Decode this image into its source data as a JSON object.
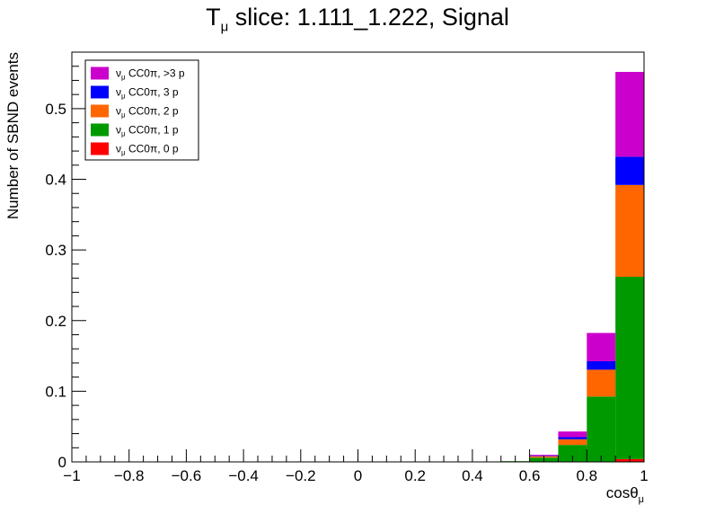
{
  "title": {
    "main": "T",
    "sub": "μ",
    "rest": " slice: 1.111_1.222, Signal"
  },
  "chart_data": {
    "type": "bar",
    "stacked": true,
    "xlabel": "cosθ",
    "xlabel_sub": "μ",
    "ylabel": "Number of SBND events",
    "xlim": [
      -1,
      1
    ],
    "ylim": [
      0,
      0.58
    ],
    "bin_edges": [
      -1.0,
      -0.9,
      -0.8,
      -0.7,
      -0.6,
      -0.5,
      -0.4,
      -0.3,
      -0.2,
      -0.1,
      0.0,
      0.1,
      0.2,
      0.3,
      0.4,
      0.5,
      0.6,
      0.7,
      0.8,
      0.9,
      1.0
    ],
    "xticks": [
      -1,
      -0.8,
      -0.6,
      -0.4,
      -0.2,
      0,
      0.2,
      0.4,
      0.6,
      0.8,
      1
    ],
    "xtick_labels": [
      "−1",
      "−0.8",
      "−0.6",
      "−0.4",
      "−0.2",
      "0",
      "0.2",
      "0.4",
      "0.6",
      "0.8",
      "1"
    ],
    "yticks": [
      0,
      0.1,
      0.2,
      0.3,
      0.4,
      0.5
    ],
    "ytick_labels": [
      "0",
      "0.1",
      "0.2",
      "0.3",
      "0.4",
      "0.5"
    ],
    "legend_placement": "top-left",
    "series": [
      {
        "name": "ν",
        "name_sub": "μ",
        "name_rest": " CC0π, 0 p",
        "color": "#ff0000",
        "values": [
          0,
          0,
          0,
          0,
          0,
          0,
          0,
          0,
          0,
          0,
          0,
          0,
          0,
          0,
          0,
          0,
          0,
          0,
          0.0005,
          0.004
        ]
      },
      {
        "name": "ν",
        "name_sub": "μ",
        "name_rest": " CC0π, 1 p",
        "color": "#009900",
        "values": [
          0,
          0,
          0,
          0,
          0,
          0,
          0,
          0,
          0,
          0,
          0,
          0,
          0,
          0,
          0,
          0.001,
          0.006,
          0.024,
          0.092,
          0.258
        ]
      },
      {
        "name": "ν",
        "name_sub": "μ",
        "name_rest": " CC0π, 2 p",
        "color": "#ff6600",
        "values": [
          0,
          0,
          0,
          0,
          0,
          0,
          0,
          0,
          0,
          0,
          0,
          0,
          0,
          0,
          0,
          0,
          0.002,
          0.008,
          0.038,
          0.13
        ]
      },
      {
        "name": "ν",
        "name_sub": "μ",
        "name_rest": " CC0π, 3 p",
        "color": "#0000ff",
        "values": [
          0,
          0,
          0,
          0,
          0,
          0,
          0,
          0,
          0,
          0,
          0,
          0,
          0,
          0,
          0,
          0,
          0.0005,
          0.003,
          0.012,
          0.04
        ]
      },
      {
        "name": "ν",
        "name_sub": "μ",
        "name_rest": " CC0π, >3 p",
        "color": "#cc00cc",
        "values": [
          0,
          0,
          0,
          0,
          0,
          0,
          0,
          0,
          0,
          0,
          0,
          0,
          0,
          0,
          0,
          0,
          0.0015,
          0.008,
          0.04,
          0.12
        ]
      }
    ]
  }
}
